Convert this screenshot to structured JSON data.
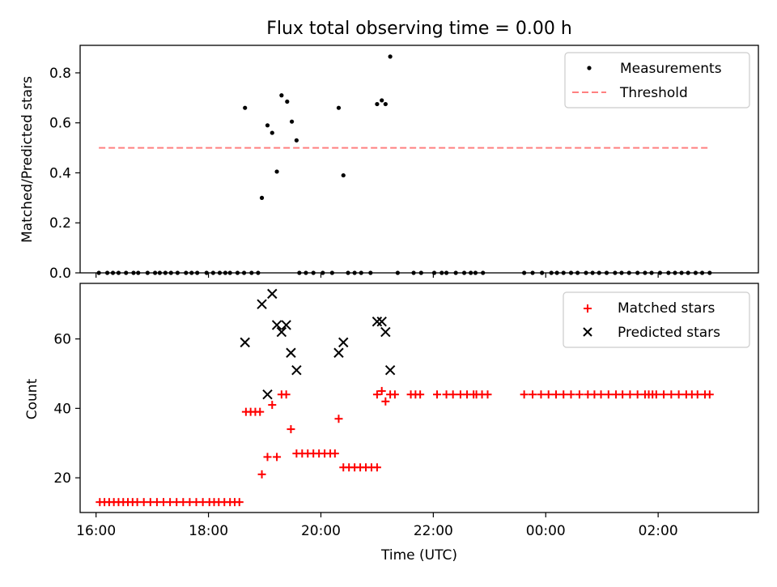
{
  "chart_data": [
    {
      "type": "scatter",
      "title": "Flux total observing time = 0.00 h",
      "xlabel": "",
      "ylabel": "Matched/Predicted stars",
      "x_unit": "time of day (UTC), hours",
      "xlim": [
        "15:43",
        "03:47"
      ],
      "ylim": [
        0.0,
        0.91
      ],
      "yticks": [
        0.0,
        0.2,
        0.4,
        0.6,
        0.8
      ],
      "ytick_labels": [
        "0.0",
        "0.2",
        "0.4",
        "0.6",
        "0.8"
      ],
      "legend": {
        "position": "top-right",
        "entries": [
          "Measurements",
          "Threshold"
        ]
      },
      "series": [
        {
          "name": "Measurements",
          "color": "#000000",
          "marker": "dot",
          "points": [
            {
              "x": "16:03",
              "y": 0.0
            },
            {
              "x": "16:12",
              "y": 0.0
            },
            {
              "x": "16:18",
              "y": 0.0
            },
            {
              "x": "16:24",
              "y": 0.0
            },
            {
              "x": "16:32",
              "y": 0.0
            },
            {
              "x": "16:40",
              "y": 0.0
            },
            {
              "x": "16:45",
              "y": 0.0
            },
            {
              "x": "16:55",
              "y": 0.0
            },
            {
              "x": "17:03",
              "y": 0.0
            },
            {
              "x": "17:08",
              "y": 0.0
            },
            {
              "x": "17:14",
              "y": 0.0
            },
            {
              "x": "17:20",
              "y": 0.0
            },
            {
              "x": "17:27",
              "y": 0.0
            },
            {
              "x": "17:36",
              "y": 0.0
            },
            {
              "x": "17:42",
              "y": 0.0
            },
            {
              "x": "17:48",
              "y": 0.0
            },
            {
              "x": "17:58",
              "y": 0.0
            },
            {
              "x": "18:05",
              "y": 0.0
            },
            {
              "x": "18:12",
              "y": 0.0
            },
            {
              "x": "18:18",
              "y": 0.0
            },
            {
              "x": "18:23",
              "y": 0.0
            },
            {
              "x": "18:31",
              "y": 0.0
            },
            {
              "x": "18:38",
              "y": 0.0
            },
            {
              "x": "18:46",
              "y": 0.0
            },
            {
              "x": "18:53",
              "y": 0.0
            },
            {
              "x": "19:37",
              "y": 0.0
            },
            {
              "x": "19:44",
              "y": 0.0
            },
            {
              "x": "19:52",
              "y": 0.0
            },
            {
              "x": "20:02",
              "y": 0.0
            },
            {
              "x": "20:12",
              "y": 0.0
            },
            {
              "x": "20:29",
              "y": 0.0
            },
            {
              "x": "20:36",
              "y": 0.0
            },
            {
              "x": "20:43",
              "y": 0.0
            },
            {
              "x": "20:53",
              "y": 0.0
            },
            {
              "x": "21:22",
              "y": 0.0
            },
            {
              "x": "21:39",
              "y": 0.0
            },
            {
              "x": "21:47",
              "y": 0.0
            },
            {
              "x": "22:01",
              "y": 0.0
            },
            {
              "x": "22:09",
              "y": 0.0
            },
            {
              "x": "22:14",
              "y": 0.0
            },
            {
              "x": "22:24",
              "y": 0.0
            },
            {
              "x": "22:33",
              "y": 0.0
            },
            {
              "x": "22:40",
              "y": 0.0
            },
            {
              "x": "22:45",
              "y": 0.0
            },
            {
              "x": "22:53",
              "y": 0.0
            },
            {
              "x": "23:37",
              "y": 0.0
            },
            {
              "x": "23:46",
              "y": 0.0
            },
            {
              "x": "23:56",
              "y": 0.0
            },
            {
              "x": "00:06",
              "y": 0.0
            },
            {
              "x": "00:12",
              "y": 0.0
            },
            {
              "x": "00:19",
              "y": 0.0
            },
            {
              "x": "00:27",
              "y": 0.0
            },
            {
              "x": "00:34",
              "y": 0.0
            },
            {
              "x": "00:43",
              "y": 0.0
            },
            {
              "x": "00:50",
              "y": 0.0
            },
            {
              "x": "00:57",
              "y": 0.0
            },
            {
              "x": "01:05",
              "y": 0.0
            },
            {
              "x": "01:14",
              "y": 0.0
            },
            {
              "x": "01:21",
              "y": 0.0
            },
            {
              "x": "01:29",
              "y": 0.0
            },
            {
              "x": "01:38",
              "y": 0.0
            },
            {
              "x": "01:46",
              "y": 0.0
            },
            {
              "x": "01:53",
              "y": 0.0
            },
            {
              "x": "02:02",
              "y": 0.0
            },
            {
              "x": "02:11",
              "y": 0.0
            },
            {
              "x": "02:18",
              "y": 0.0
            },
            {
              "x": "02:25",
              "y": 0.0
            },
            {
              "x": "02:32",
              "y": 0.0
            },
            {
              "x": "02:40",
              "y": 0.0
            },
            {
              "x": "02:47",
              "y": 0.0
            },
            {
              "x": "02:55",
              "y": 0.0
            },
            {
              "x": "18:39",
              "y": 0.66
            },
            {
              "x": "18:57",
              "y": 0.3
            },
            {
              "x": "19:03",
              "y": 0.59
            },
            {
              "x": "19:08",
              "y": 0.56
            },
            {
              "x": "19:13",
              "y": 0.405
            },
            {
              "x": "19:18",
              "y": 0.71
            },
            {
              "x": "19:24",
              "y": 0.685
            },
            {
              "x": "19:29",
              "y": 0.605
            },
            {
              "x": "19:34",
              "y": 0.53
            },
            {
              "x": "20:19",
              "y": 0.66
            },
            {
              "x": "20:24",
              "y": 0.39
            },
            {
              "x": "21:00",
              "y": 0.675
            },
            {
              "x": "21:05",
              "y": 0.69
            },
            {
              "x": "21:09",
              "y": 0.675
            },
            {
              "x": "21:14",
              "y": 0.865
            }
          ]
        },
        {
          "name": "Threshold",
          "color": "#ff8080",
          "style": "dashed",
          "points": [
            {
              "x": "16:03",
              "y": 0.5
            },
            {
              "x": "02:55",
              "y": 0.5
            }
          ]
        }
      ]
    },
    {
      "type": "scatter",
      "title": "",
      "xlabel": "Time (UTC)",
      "ylabel": "Count",
      "x_unit": "time of day (UTC), hours",
      "xlim": [
        "15:43",
        "03:47"
      ],
      "ylim": [
        10,
        76
      ],
      "yticks": [
        20,
        40,
        60
      ],
      "ytick_labels": [
        "20",
        "40",
        "60"
      ],
      "xticks": [
        "16:00",
        "18:00",
        "20:00",
        "22:00",
        "00:00",
        "02:00"
      ],
      "xtick_labels": [
        "16:00",
        "18:00",
        "20:00",
        "22:00",
        "00:00",
        "02:00"
      ],
      "legend": {
        "position": "top-right",
        "entries": [
          "Matched stars",
          "Predicted stars"
        ]
      },
      "series": [
        {
          "name": "Matched stars",
          "color": "#ff0000",
          "marker": "plus",
          "points": [
            {
              "x": "16:04",
              "y": 13
            },
            {
              "x": "16:09",
              "y": 13
            },
            {
              "x": "16:14",
              "y": 13
            },
            {
              "x": "16:19",
              "y": 13
            },
            {
              "x": "16:24",
              "y": 13
            },
            {
              "x": "16:29",
              "y": 13
            },
            {
              "x": "16:34",
              "y": 13
            },
            {
              "x": "16:39",
              "y": 13
            },
            {
              "x": "16:44",
              "y": 13
            },
            {
              "x": "16:51",
              "y": 13
            },
            {
              "x": "16:58",
              "y": 13
            },
            {
              "x": "17:05",
              "y": 13
            },
            {
              "x": "17:12",
              "y": 13
            },
            {
              "x": "17:19",
              "y": 13
            },
            {
              "x": "17:26",
              "y": 13
            },
            {
              "x": "17:33",
              "y": 13
            },
            {
              "x": "17:40",
              "y": 13
            },
            {
              "x": "17:47",
              "y": 13
            },
            {
              "x": "17:54",
              "y": 13
            },
            {
              "x": "18:01",
              "y": 13
            },
            {
              "x": "18:06",
              "y": 13
            },
            {
              "x": "18:11",
              "y": 13
            },
            {
              "x": "18:17",
              "y": 13
            },
            {
              "x": "18:23",
              "y": 13
            },
            {
              "x": "18:28",
              "y": 13
            },
            {
              "x": "18:33",
              "y": 13
            },
            {
              "x": "18:40",
              "y": 39
            },
            {
              "x": "18:45",
              "y": 39
            },
            {
              "x": "18:50",
              "y": 39
            },
            {
              "x": "18:55",
              "y": 39
            },
            {
              "x": "18:57",
              "y": 21
            },
            {
              "x": "19:03",
              "y": 26
            },
            {
              "x": "19:08",
              "y": 41
            },
            {
              "x": "19:13",
              "y": 26
            },
            {
              "x": "19:18",
              "y": 44
            },
            {
              "x": "19:23",
              "y": 44
            },
            {
              "x": "19:28",
              "y": 34
            },
            {
              "x": "19:34",
              "y": 27
            },
            {
              "x": "19:40",
              "y": 27
            },
            {
              "x": "19:46",
              "y": 27
            },
            {
              "x": "19:52",
              "y": 27
            },
            {
              "x": "19:58",
              "y": 27
            },
            {
              "x": "20:04",
              "y": 27
            },
            {
              "x": "20:10",
              "y": 27
            },
            {
              "x": "20:15",
              "y": 27
            },
            {
              "x": "20:19",
              "y": 37
            },
            {
              "x": "20:24",
              "y": 23
            },
            {
              "x": "20:30",
              "y": 23
            },
            {
              "x": "20:36",
              "y": 23
            },
            {
              "x": "20:42",
              "y": 23
            },
            {
              "x": "20:48",
              "y": 23
            },
            {
              "x": "20:54",
              "y": 23
            },
            {
              "x": "21:00",
              "y": 23
            },
            {
              "x": "21:00",
              "y": 44
            },
            {
              "x": "21:05",
              "y": 45
            },
            {
              "x": "21:09",
              "y": 42
            },
            {
              "x": "21:14",
              "y": 44
            },
            {
              "x": "21:19",
              "y": 44
            },
            {
              "x": "21:36",
              "y": 44
            },
            {
              "x": "21:41",
              "y": 44
            },
            {
              "x": "21:46",
              "y": 44
            },
            {
              "x": "22:04",
              "y": 44
            },
            {
              "x": "22:14",
              "y": 44
            },
            {
              "x": "22:21",
              "y": 44
            },
            {
              "x": "22:29",
              "y": 44
            },
            {
              "x": "22:36",
              "y": 44
            },
            {
              "x": "22:43",
              "y": 44
            },
            {
              "x": "22:46",
              "y": 44
            },
            {
              "x": "22:52",
              "y": 44
            },
            {
              "x": "22:58",
              "y": 44
            },
            {
              "x": "23:37",
              "y": 44
            },
            {
              "x": "23:46",
              "y": 44
            },
            {
              "x": "23:55",
              "y": 44
            },
            {
              "x": "00:03",
              "y": 44
            },
            {
              "x": "00:11",
              "y": 44
            },
            {
              "x": "00:19",
              "y": 44
            },
            {
              "x": "00:27",
              "y": 44
            },
            {
              "x": "00:36",
              "y": 44
            },
            {
              "x": "00:45",
              "y": 44
            },
            {
              "x": "00:52",
              "y": 44
            },
            {
              "x": "00:59",
              "y": 44
            },
            {
              "x": "01:07",
              "y": 44
            },
            {
              "x": "01:15",
              "y": 44
            },
            {
              "x": "01:22",
              "y": 44
            },
            {
              "x": "01:30",
              "y": 44
            },
            {
              "x": "01:38",
              "y": 44
            },
            {
              "x": "01:46",
              "y": 44
            },
            {
              "x": "01:50",
              "y": 44
            },
            {
              "x": "01:54",
              "y": 44
            },
            {
              "x": "01:58",
              "y": 44
            },
            {
              "x": "02:06",
              "y": 44
            },
            {
              "x": "02:14",
              "y": 44
            },
            {
              "x": "02:22",
              "y": 44
            },
            {
              "x": "02:30",
              "y": 44
            },
            {
              "x": "02:36",
              "y": 44
            },
            {
              "x": "02:42",
              "y": 44
            },
            {
              "x": "02:50",
              "y": 44
            },
            {
              "x": "02:55",
              "y": 44
            }
          ]
        },
        {
          "name": "Predicted stars",
          "color": "#000000",
          "marker": "x",
          "points": [
            {
              "x": "18:39",
              "y": 59
            },
            {
              "x": "18:57",
              "y": 70
            },
            {
              "x": "19:03",
              "y": 44
            },
            {
              "x": "19:08",
              "y": 73
            },
            {
              "x": "19:13",
              "y": 64
            },
            {
              "x": "19:18",
              "y": 62
            },
            {
              "x": "19:23",
              "y": 64
            },
            {
              "x": "19:28",
              "y": 56
            },
            {
              "x": "19:34",
              "y": 51
            },
            {
              "x": "20:19",
              "y": 56
            },
            {
              "x": "20:24",
              "y": 59
            },
            {
              "x": "21:00",
              "y": 65
            },
            {
              "x": "21:05",
              "y": 65
            },
            {
              "x": "21:09",
              "y": 62
            },
            {
              "x": "21:14",
              "y": 51
            }
          ]
        }
      ]
    }
  ]
}
